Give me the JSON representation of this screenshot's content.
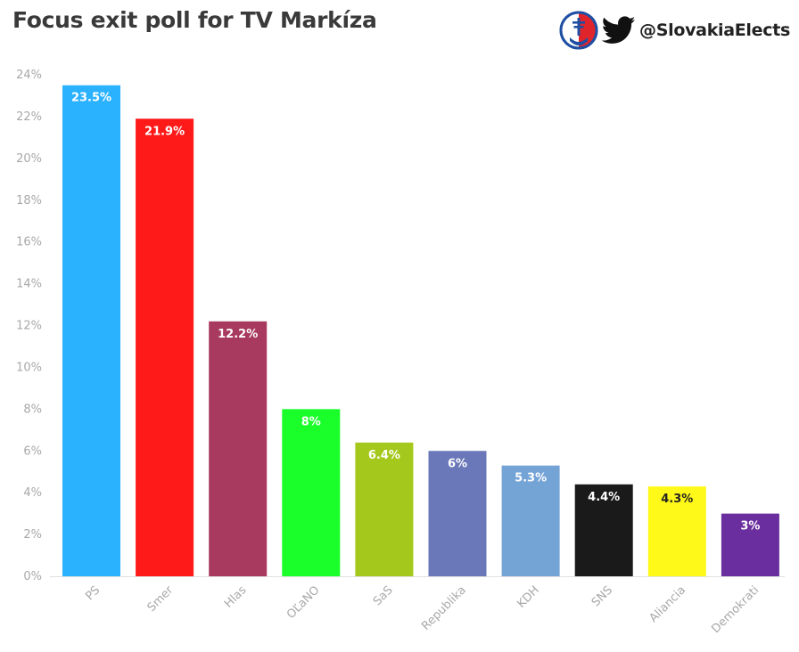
{
  "header": {
    "title": "Focus exit poll for TV Markíza",
    "handle": "@SlovakiaElects"
  },
  "icons": {
    "emblem": "slovakia-elects-logo-icon",
    "twitter": "twitter-bird-icon"
  },
  "chart_data": {
    "type": "bar",
    "categories": [
      "PS",
      "Smer",
      "Hlas",
      "OĽaNO",
      "SaS",
      "Republika",
      "KDH",
      "SNS",
      "Aliancia",
      "Demokrati"
    ],
    "values": [
      23.5,
      21.9,
      12.2,
      8,
      6.4,
      6,
      5.3,
      4.4,
      4.3,
      3
    ],
    "value_labels": [
      "23.5%",
      "21.9%",
      "12.2%",
      "8%",
      "6.4%",
      "6%",
      "5.3%",
      "4.4%",
      "4.3%",
      "3%"
    ],
    "colors": [
      "#2bb2ff",
      "#ff1a1a",
      "#a8395f",
      "#1aff2a",
      "#a4c81b",
      "#6a77b8",
      "#74a3d6",
      "#1a1a1a",
      "#fff91a",
      "#6a2e9e"
    ],
    "label_colors": [
      "#ffffff",
      "#ffffff",
      "#ffffff",
      "#ffffff",
      "#ffffff",
      "#ffffff",
      "#ffffff",
      "#ffffff",
      "#222222",
      "#ffffff"
    ],
    "ylim": [
      0,
      24
    ],
    "yticks": [
      0,
      2,
      4,
      6,
      8,
      10,
      12,
      14,
      16,
      18,
      20,
      22,
      24
    ],
    "ytick_labels": [
      "0%",
      "2%",
      "4%",
      "6%",
      "8%",
      "10%",
      "12%",
      "14%",
      "16%",
      "18%",
      "20%",
      "22%",
      "24%"
    ],
    "grid": false,
    "title": "Focus exit poll for TV Markíza",
    "xlabel": "",
    "ylabel": ""
  }
}
